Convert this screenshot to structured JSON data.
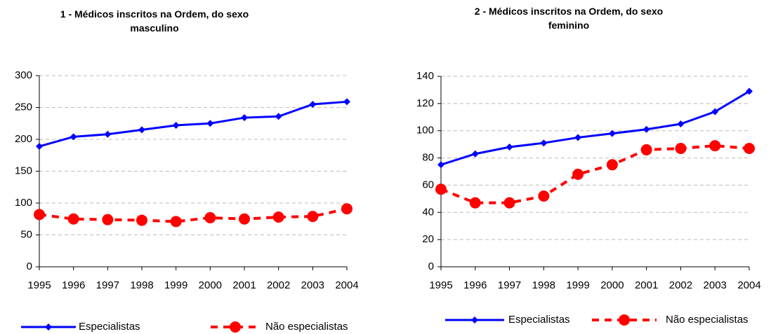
{
  "chart_data": [
    {
      "type": "line",
      "title": "1 - Médicos inscritos na Ordem, do sexo masculino",
      "categories": [
        "1995",
        "1996",
        "1997",
        "1998",
        "1999",
        "2000",
        "2001",
        "2002",
        "2003",
        "2004"
      ],
      "series": [
        {
          "name": "Especialistas",
          "color": "#0000ff",
          "values": [
            189,
            204,
            208,
            215,
            222,
            225,
            234,
            236,
            255,
            259
          ]
        },
        {
          "name": "Não especialistas",
          "color": "#ff0000",
          "values": [
            82,
            75,
            74,
            73,
            71,
            77,
            75,
            78,
            79,
            91
          ]
        }
      ],
      "ylim": [
        0,
        300
      ],
      "yticks": [
        0,
        50,
        100,
        150,
        200,
        250,
        300
      ],
      "grid": true
    },
    {
      "type": "line",
      "title": "2 - Médicos inscritos na Ordem, do sexo feminino",
      "categories": [
        "1995",
        "1996",
        "1997",
        "1998",
        "1999",
        "2000",
        "2001",
        "2002",
        "2003",
        "2004"
      ],
      "series": [
        {
          "name": "Especialistas",
          "color": "#0000ff",
          "values": [
            75,
            83,
            88,
            91,
            95,
            98,
            101,
            105,
            114,
            129
          ]
        },
        {
          "name": "Não especialistas",
          "color": "#ff0000",
          "values": [
            57,
            47,
            47,
            52,
            68,
            75,
            86,
            87,
            89,
            87
          ]
        }
      ],
      "ylim": [
        0,
        140
      ],
      "yticks": [
        0,
        20,
        40,
        60,
        80,
        100,
        120,
        140
      ],
      "grid": true
    }
  ]
}
